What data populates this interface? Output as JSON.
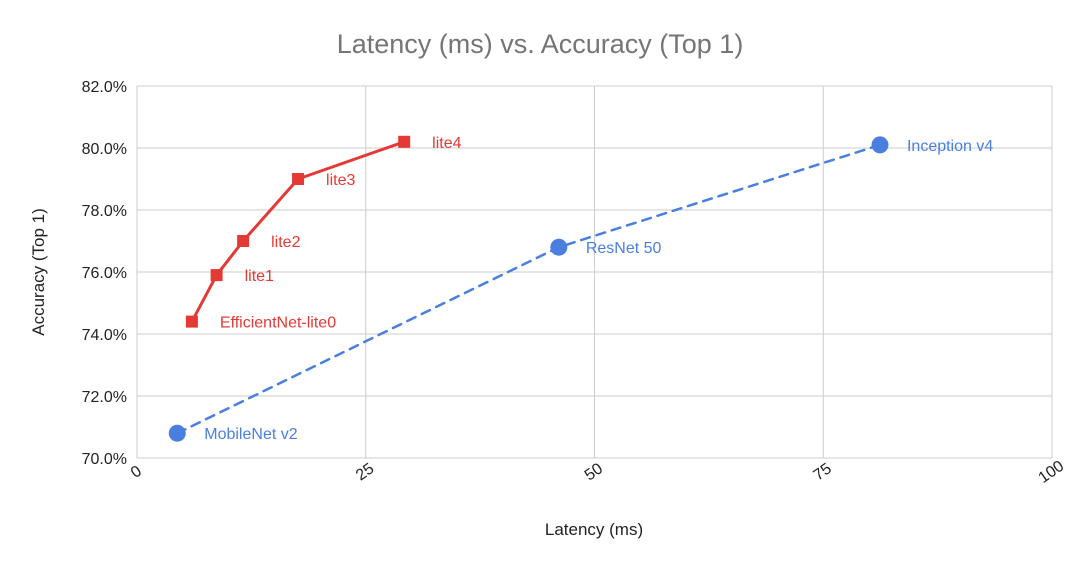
{
  "chart_data": {
    "type": "scatter",
    "title": "Latency (ms) vs. Accuracy (Top 1)",
    "xlabel": "Latency (ms)",
    "ylabel": "Accuracy (Top 1)",
    "xlim": [
      0,
      100
    ],
    "ylim": [
      70.0,
      82.0
    ],
    "x_ticks": [
      {
        "value": 0,
        "label": "0"
      },
      {
        "value": 25,
        "label": "25"
      },
      {
        "value": 50,
        "label": "50"
      },
      {
        "value": 75,
        "label": "75"
      },
      {
        "value": 100,
        "label": "100"
      }
    ],
    "y_ticks": [
      {
        "value": 70,
        "label": "70.0%"
      },
      {
        "value": 72,
        "label": "72.0%"
      },
      {
        "value": 74,
        "label": "74.0%"
      },
      {
        "value": 76,
        "label": "76.0%"
      },
      {
        "value": 78,
        "label": "78.0%"
      },
      {
        "value": 80,
        "label": "80.0%"
      },
      {
        "value": 82,
        "label": "82.0%"
      }
    ],
    "grid": true,
    "series": [
      {
        "color": "#e53935",
        "line": "solid",
        "marker": "square",
        "points": [
          {
            "x": 6,
            "y": 74.4,
            "label": "EfficientNet-lite0"
          },
          {
            "x": 8.7,
            "y": 75.9,
            "label": "lite1"
          },
          {
            "x": 11.6,
            "y": 77.0,
            "label": "lite2"
          },
          {
            "x": 17.6,
            "y": 79.0,
            "label": "lite3"
          },
          {
            "x": 29.2,
            "y": 80.2,
            "label": "lite4"
          }
        ]
      },
      {
        "color": "#4a7fe0",
        "line": "dashed",
        "marker": "circle",
        "points": [
          {
            "x": 4.4,
            "y": 70.8,
            "label": "MobileNet v2"
          },
          {
            "x": 46.1,
            "y": 76.8,
            "label": "ResNet 50"
          },
          {
            "x": 81.2,
            "y": 80.1,
            "label": "Inception v4"
          }
        ]
      }
    ]
  }
}
